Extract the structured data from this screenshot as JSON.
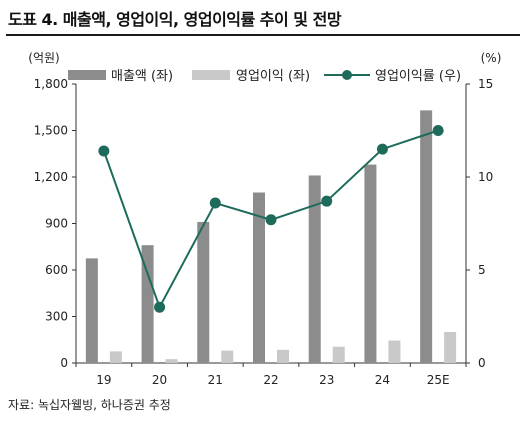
{
  "title": "도표 4. 매출액, 영업이익, 영업이익률 추이 및 전망",
  "source": "자료: 녹십자웰빙, 하나증권 추정",
  "colors": {
    "revenue": "#8c8c8c",
    "op_income": "#c9c9c9",
    "margin": "#1e6b5c",
    "axis": "#333333"
  },
  "chart_data": {
    "type": "bar",
    "categories": [
      "19",
      "20",
      "21",
      "22",
      "23",
      "24",
      "25E"
    ],
    "series": [
      {
        "name": "매출액 (좌)",
        "type": "bar",
        "axis": "left",
        "values": [
          675,
          760,
          910,
          1100,
          1210,
          1280,
          1630
        ]
      },
      {
        "name": "영업이익 (좌)",
        "type": "bar",
        "axis": "left",
        "values": [
          75,
          25,
          80,
          85,
          105,
          145,
          200
        ]
      },
      {
        "name": "영업이익률 (우)",
        "type": "line",
        "axis": "right",
        "values": [
          11.4,
          3.0,
          8.6,
          7.7,
          8.7,
          11.5,
          12.5
        ]
      }
    ],
    "y_left": {
      "label": "(억원)",
      "ylim": [
        0,
        1800
      ],
      "ticks": [
        "0",
        "300",
        "600",
        "900",
        "1,200",
        "1,500",
        "1,800"
      ]
    },
    "y_right": {
      "label": "(%)",
      "ylim": [
        0,
        15
      ],
      "ticks": [
        "0",
        "5",
        "10",
        "15"
      ]
    },
    "legend_position": "top",
    "grid": false
  }
}
